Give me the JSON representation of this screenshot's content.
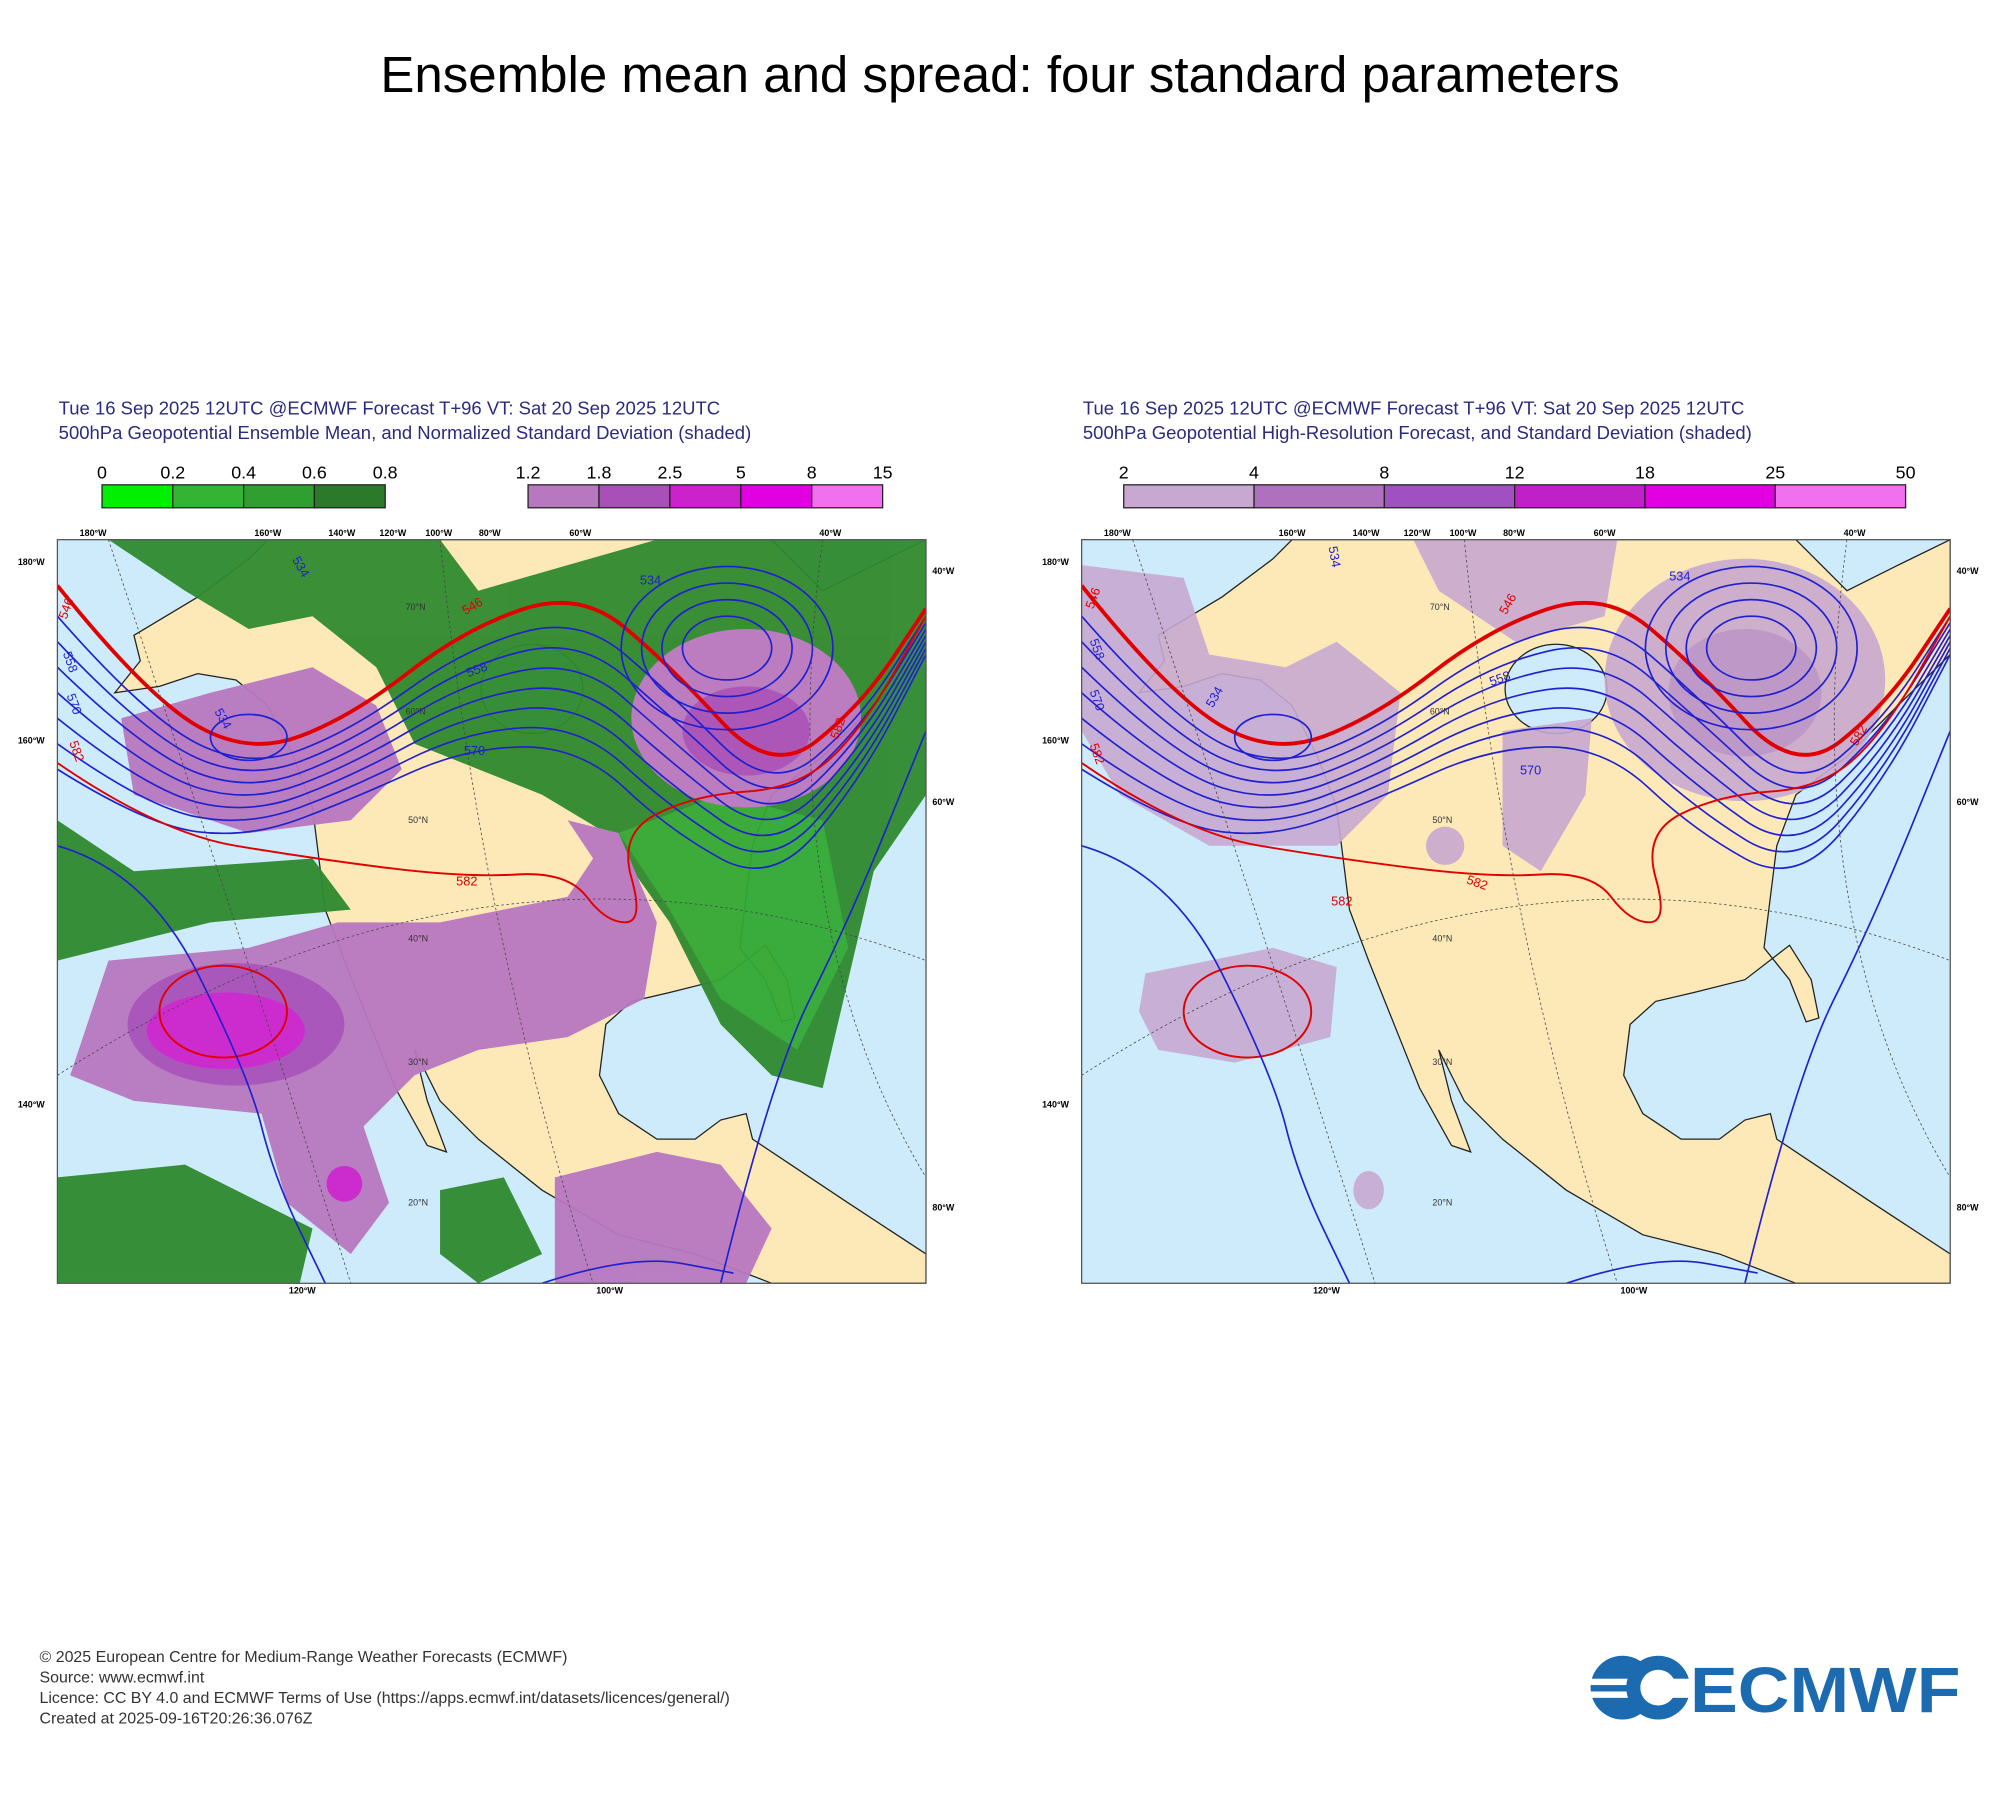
{
  "title": "Ensemble mean and spread: four standard parameters",
  "panels": [
    {
      "header": [
        "Tue 16 Sep 2025 12UTC @ECMWF Forecast T+96 VT: Sat 20 Sep 2025 12UTC",
        "500hPa Geopotential Ensemble Mean, and Normalized Standard Deviation (shaded)"
      ],
      "legends": [
        {
          "ticks": [
            0,
            0.2,
            0.4,
            0.6,
            0.8
          ],
          "colors": [
            "#00f000",
            "#33b533",
            "#2fa02f",
            "#2a7a2a"
          ]
        },
        {
          "ticks": [
            1.2,
            1.8,
            2.5,
            5,
            8,
            15
          ],
          "colors": [
            "#b878c0",
            "#a850b8",
            "#cc22cc",
            "#e000e0",
            "#f070f0"
          ]
        }
      ],
      "top_labels": [
        "180°W",
        "160°W",
        "140°W",
        "120°W",
        "100°W",
        "80°W",
        "60°W",
        "40°W"
      ],
      "left_labels": [
        "180°W",
        "160°W",
        "140°W"
      ],
      "right_labels": [
        "40°W",
        "60°W",
        "80°W"
      ],
      "bottom_labels": [
        "120°W",
        "100°W"
      ],
      "grid_labels": [
        "70°N",
        "60°N",
        "50°N",
        "40°N",
        "30°N",
        "20°N"
      ],
      "contour_labels": [
        "546",
        "534",
        "546",
        "534",
        "558",
        "570",
        "582",
        "534",
        "558",
        "570",
        "582",
        "582"
      ]
    },
    {
      "header": [
        "Tue 16 Sep 2025 12UTC @ECMWF Forecast T+96 VT: Sat 20 Sep 2025 12UTC",
        "500hPa Geopotential High-Resolution Forecast, and Standard Deviation (shaded)"
      ],
      "legends": [
        {
          "ticks": [
            2,
            4,
            8,
            12,
            18,
            25,
            50
          ],
          "colors": [
            "#c8a8d0",
            "#b070c0",
            "#a050c0",
            "#c020c8",
            "#e000e0",
            "#f070f0"
          ]
        }
      ],
      "top_labels": [
        "180°W",
        "160°W",
        "140°W",
        "120°W",
        "100°W",
        "80°W",
        "60°W",
        "40°W"
      ],
      "left_labels": [
        "180°W",
        "160°W",
        "140°W"
      ],
      "right_labels": [
        "40°W",
        "60°W",
        "80°W"
      ],
      "bottom_labels": [
        "120°W",
        "100°W"
      ],
      "grid_labels": [
        "70°N",
        "60°N",
        "50°N",
        "40°N",
        "30°N",
        "20°N"
      ],
      "contour_labels": [
        "546",
        "534",
        "546",
        "534",
        "558",
        "570",
        "582",
        "534",
        "558",
        "570",
        "582",
        "582",
        "582"
      ]
    }
  ],
  "footer": [
    "© 2025 European Centre for Medium-Range Weather Forecasts (ECMWF)",
    "Source: www.ecmwf.int",
    "Licence: CC BY 4.0 and ECMWF Terms of Use (https://apps.ecmwf.int/datasets/licences/general/)",
    "Created at 2025-09-16T20:26:36.076Z"
  ],
  "logo": "ECMWF"
}
